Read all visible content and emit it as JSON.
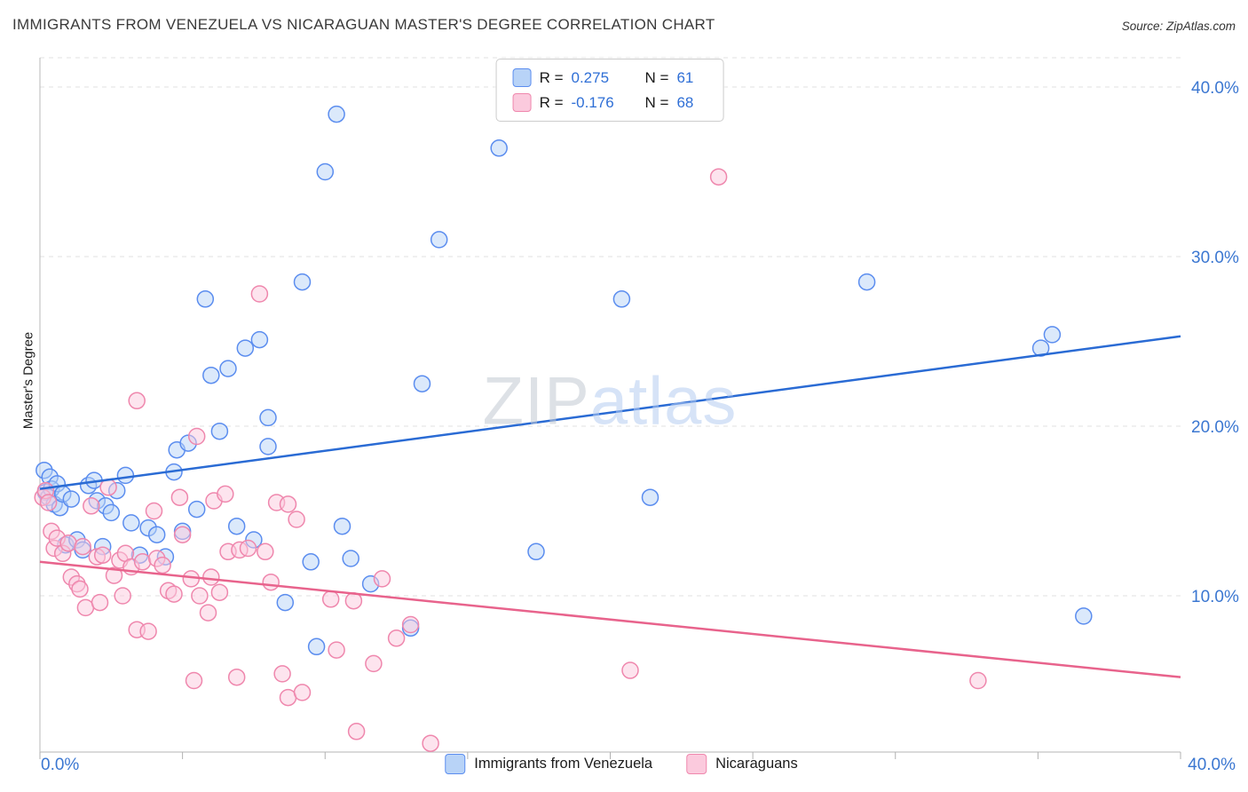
{
  "header": {
    "title": "IMMIGRANTS FROM VENEZUELA VS NICARAGUAN MASTER'S DEGREE CORRELATION CHART",
    "source": "Source: ZipAtlas.com"
  },
  "watermark": {
    "part1": "ZIP",
    "part2": "atlas"
  },
  "legend_box": {
    "rows": [
      {
        "r_label": "R =",
        "r_value": "0.275",
        "n_label": "N =",
        "n_value": "61"
      },
      {
        "r_label": "R =",
        "r_value": "-0.176",
        "n_label": "N =",
        "n_value": "68"
      }
    ]
  },
  "axes": {
    "x_min_label": "0.0%",
    "x_max_label": "40.0%",
    "y_ticks": [
      {
        "value": 40,
        "label": "40.0%"
      },
      {
        "value": 30,
        "label": "30.0%"
      },
      {
        "value": 20,
        "label": "20.0%"
      },
      {
        "value": 10,
        "label": "10.0%"
      }
    ]
  },
  "bottom_legend": [
    {
      "label": "Immigrants from Venezuela"
    },
    {
      "label": "Nicaraguans"
    }
  ],
  "chart_data": {
    "type": "scatter",
    "title": "IMMIGRANTS FROM VENEZUELA VS NICARAGUAN MASTER'S DEGREE CORRELATION CHART",
    "ylabel": "Master's Degree",
    "xlim": [
      0,
      40
    ],
    "ylim": [
      0,
      41.7
    ],
    "x_ticks_percent": [
      0,
      5,
      10,
      15,
      20,
      25,
      30,
      35,
      40
    ],
    "grid": "dashed-horizontal",
    "legend_position": "top-center",
    "series": [
      {
        "name": "Immigrants from Venezuela",
        "R": 0.275,
        "N": 61,
        "fill": "#b8d3f7",
        "stroke": "#5b8def",
        "trend": {
          "x0": 0,
          "y0": 16.3,
          "x1": 40,
          "y1": 25.3,
          "color": "#2a6bd4"
        },
        "points": [
          [
            0.15,
            17.4
          ],
          [
            0.2,
            16.1
          ],
          [
            0.3,
            15.8
          ],
          [
            0.35,
            17.0
          ],
          [
            0.4,
            16.3
          ],
          [
            0.5,
            15.4
          ],
          [
            0.6,
            16.6
          ],
          [
            0.7,
            15.2
          ],
          [
            0.8,
            16.0
          ],
          [
            0.9,
            13.0
          ],
          [
            1.1,
            15.7
          ],
          [
            1.3,
            13.3
          ],
          [
            1.5,
            12.7
          ],
          [
            1.7,
            16.5
          ],
          [
            1.9,
            16.8
          ],
          [
            2.0,
            15.6
          ],
          [
            2.2,
            12.9
          ],
          [
            2.3,
            15.3
          ],
          [
            2.5,
            14.9
          ],
          [
            2.7,
            16.2
          ],
          [
            3.0,
            17.1
          ],
          [
            3.2,
            14.3
          ],
          [
            3.5,
            12.4
          ],
          [
            3.8,
            14.0
          ],
          [
            4.1,
            13.6
          ],
          [
            4.4,
            12.3
          ],
          [
            4.7,
            17.3
          ],
          [
            4.8,
            18.6
          ],
          [
            5.0,
            13.8
          ],
          [
            5.2,
            19.0
          ],
          [
            5.5,
            15.1
          ],
          [
            5.8,
            27.5
          ],
          [
            6.0,
            23.0
          ],
          [
            6.3,
            19.7
          ],
          [
            6.6,
            23.4
          ],
          [
            6.9,
            14.1
          ],
          [
            7.2,
            24.6
          ],
          [
            7.5,
            13.3
          ],
          [
            7.7,
            25.1
          ],
          [
            8.0,
            20.5
          ],
          [
            8.0,
            18.8
          ],
          [
            8.6,
            9.6
          ],
          [
            9.2,
            28.5
          ],
          [
            9.5,
            12.0
          ],
          [
            9.7,
            7.0
          ],
          [
            10.0,
            35.0
          ],
          [
            10.4,
            38.4
          ],
          [
            10.6,
            14.1
          ],
          [
            10.9,
            12.2
          ],
          [
            11.6,
            10.7
          ],
          [
            13.0,
            8.1
          ],
          [
            13.4,
            22.5
          ],
          [
            14.0,
            31.0
          ],
          [
            16.1,
            36.4
          ],
          [
            17.4,
            12.6
          ],
          [
            20.4,
            27.5
          ],
          [
            21.4,
            15.8
          ],
          [
            29.0,
            28.5
          ],
          [
            35.1,
            24.6
          ],
          [
            35.5,
            25.4
          ],
          [
            36.6,
            8.8
          ]
        ]
      },
      {
        "name": "Nicaraguans",
        "R": -0.176,
        "N": 68,
        "fill": "#fbcadd",
        "stroke": "#ef87ad",
        "trend": {
          "x0": 0,
          "y0": 12.0,
          "x1": 40,
          "y1": 5.2,
          "color": "#e8638c"
        },
        "points": [
          [
            0.1,
            15.8
          ],
          [
            0.2,
            16.2
          ],
          [
            0.3,
            15.5
          ],
          [
            0.4,
            13.8
          ],
          [
            0.5,
            12.8
          ],
          [
            0.6,
            13.4
          ],
          [
            0.8,
            12.5
          ],
          [
            1.0,
            13.1
          ],
          [
            1.1,
            11.1
          ],
          [
            1.3,
            10.7
          ],
          [
            1.4,
            10.4
          ],
          [
            1.5,
            12.9
          ],
          [
            1.6,
            9.3
          ],
          [
            1.8,
            15.3
          ],
          [
            2.0,
            12.3
          ],
          [
            2.1,
            9.6
          ],
          [
            2.2,
            12.4
          ],
          [
            2.4,
            16.4
          ],
          [
            2.6,
            11.2
          ],
          [
            2.8,
            12.1
          ],
          [
            2.9,
            10.0
          ],
          [
            3.0,
            12.5
          ],
          [
            3.2,
            11.7
          ],
          [
            3.4,
            21.5
          ],
          [
            3.4,
            8.0
          ],
          [
            3.6,
            12.0
          ],
          [
            3.8,
            7.9
          ],
          [
            4.0,
            15.0
          ],
          [
            4.1,
            12.2
          ],
          [
            4.3,
            11.8
          ],
          [
            4.5,
            10.3
          ],
          [
            4.7,
            10.1
          ],
          [
            4.9,
            15.8
          ],
          [
            5.0,
            13.6
          ],
          [
            5.3,
            11.0
          ],
          [
            5.4,
            5.0
          ],
          [
            5.5,
            19.4
          ],
          [
            5.6,
            10.0
          ],
          [
            5.9,
            9.0
          ],
          [
            6.0,
            11.1
          ],
          [
            6.1,
            15.6
          ],
          [
            6.3,
            10.2
          ],
          [
            6.5,
            16.0
          ],
          [
            6.6,
            12.6
          ],
          [
            6.9,
            5.2
          ],
          [
            7.0,
            12.7
          ],
          [
            7.3,
            12.8
          ],
          [
            7.7,
            27.8
          ],
          [
            7.9,
            12.6
          ],
          [
            8.1,
            10.8
          ],
          [
            8.3,
            15.5
          ],
          [
            8.5,
            5.4
          ],
          [
            8.7,
            15.4
          ],
          [
            8.7,
            4.0
          ],
          [
            9.0,
            14.5
          ],
          [
            9.2,
            4.3
          ],
          [
            10.2,
            9.8
          ],
          [
            10.4,
            6.8
          ],
          [
            11.0,
            9.7
          ],
          [
            11.1,
            2.0
          ],
          [
            11.7,
            6.0
          ],
          [
            12.0,
            11.0
          ],
          [
            12.5,
            7.5
          ],
          [
            13.0,
            8.3
          ],
          [
            13.7,
            1.3
          ],
          [
            20.7,
            5.6
          ],
          [
            23.8,
            34.7
          ],
          [
            32.9,
            5.0
          ]
        ]
      }
    ]
  }
}
